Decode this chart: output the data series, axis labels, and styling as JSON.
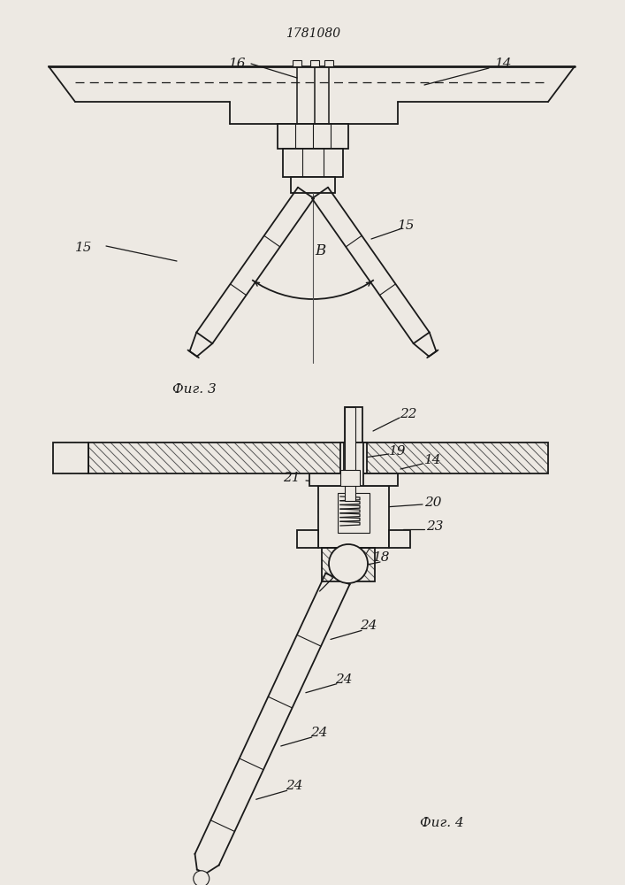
{
  "bg_color": "#ede9e3",
  "line_color": "#1a1a1a",
  "patent_number": "1781080",
  "fig3_label": "Фиг. 3",
  "fig4_label": "Фиг. 4"
}
